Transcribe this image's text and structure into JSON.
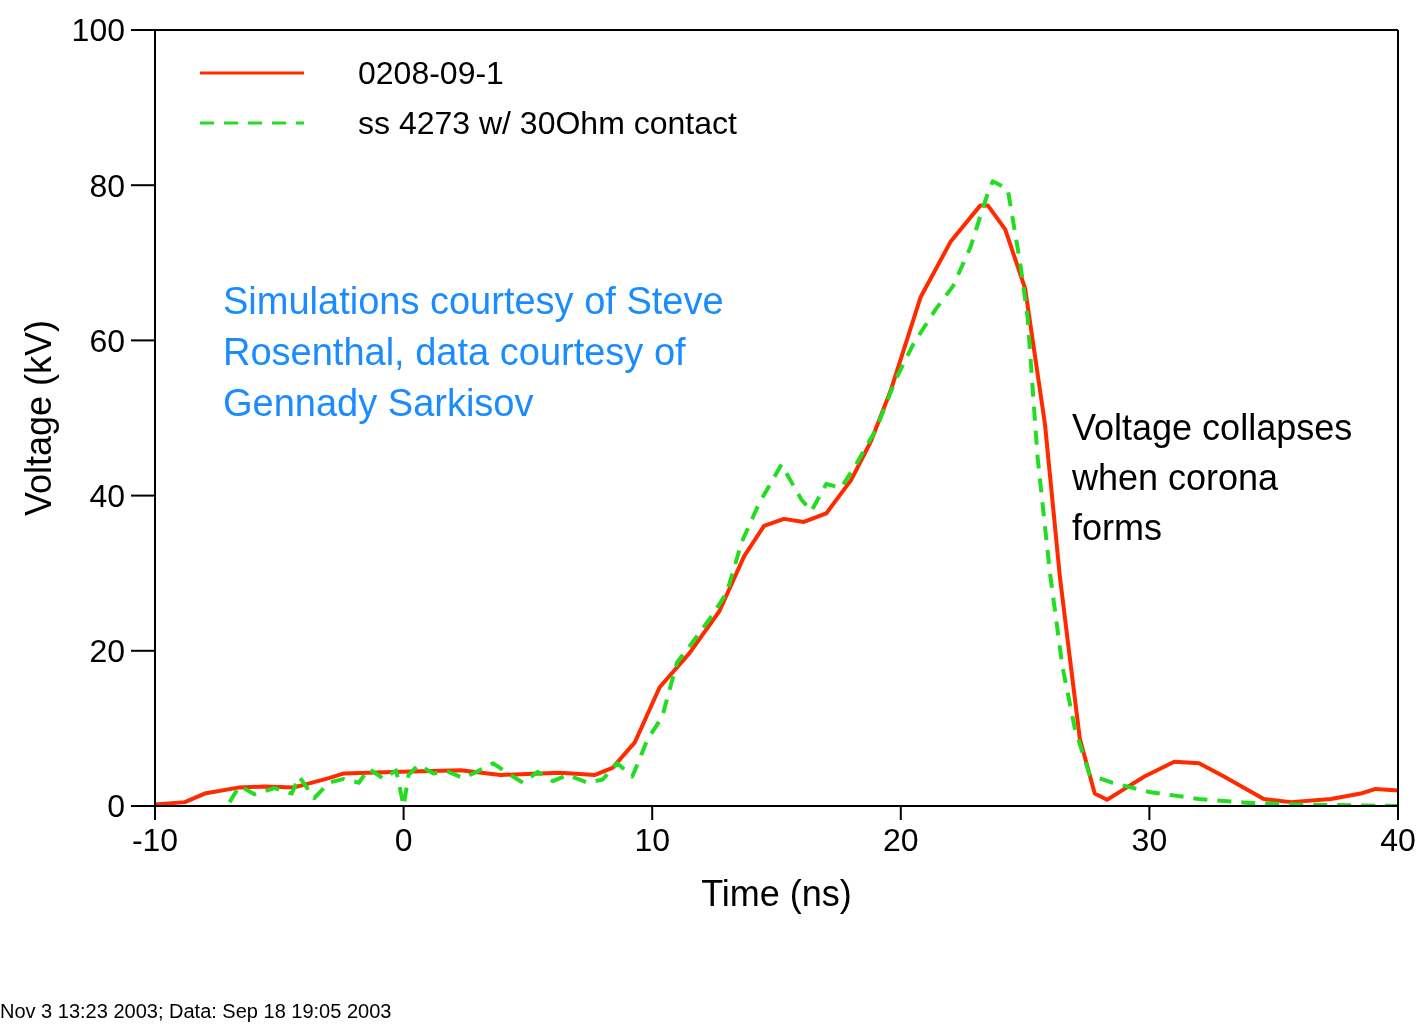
{
  "chart_data": {
    "type": "line",
    "xlabel": "Time (ns)",
    "ylabel": "Voltage (kV)",
    "xlim": [
      -10,
      40
    ],
    "xticks": [
      -10,
      0,
      10,
      20,
      30,
      40
    ],
    "ylim": [
      0,
      100
    ],
    "yticks": [
      0,
      20,
      40,
      60,
      80,
      100
    ],
    "legend": "top left",
    "marker": "none",
    "series": [
      {
        "name": "0208-09-1",
        "color": "#ff2a00",
        "line_style": "solid",
        "x": [
          -10,
          -8.8,
          -8,
          -6.6,
          -5.6,
          -4.4,
          -3,
          -2.4,
          -0.1,
          2.3,
          3.9,
          6.3,
          7.7,
          8.4,
          9.3,
          10.3,
          11.5,
          12.7,
          13.7,
          14.5,
          15.3,
          16.1,
          17,
          18,
          18.8,
          19.6,
          20.8,
          22,
          23.2,
          23.5,
          24.2,
          25,
          25.8,
          26.4,
          27.2,
          27.8,
          28.3,
          29,
          29.8,
          31,
          32,
          33,
          34.6,
          35.7,
          37.3,
          38.5,
          39.1,
          40
        ],
        "values": [
          0.2,
          0.5,
          1.6,
          2.4,
          2.5,
          2.4,
          3.6,
          4.2,
          4.4,
          4.6,
          4,
          4.3,
          4,
          4.9,
          8.2,
          15.3,
          19.7,
          25.1,
          32.2,
          36.1,
          37,
          36.6,
          37.7,
          42,
          47,
          53.6,
          65.6,
          72.7,
          77.4,
          77.4,
          74.3,
          66.7,
          49.2,
          29.5,
          8.7,
          1.6,
          0.8,
          2.2,
          3.8,
          5.7,
          5.5,
          3.8,
          0.9,
          0.5,
          0.9,
          1.6,
          2.2,
          2
        ]
      },
      {
        "name": "ss 4273 w/ 30Ohm contact",
        "color": "#22dd22",
        "line_style": "dashed",
        "x": [
          -7,
          -6.6,
          -6,
          -5.2,
          -4.5,
          -4.2,
          -3.6,
          -3,
          -2.4,
          -1.8,
          -1.4,
          -0.8,
          -0.3,
          0,
          0.2,
          0.6,
          1.2,
          1.8,
          2.4,
          3,
          3.6,
          4.2,
          4.8,
          5.4,
          6,
          6.6,
          7.4,
          8,
          8.6,
          9.2,
          9.8,
          10.4,
          11,
          11.6,
          12.4,
          13,
          13.6,
          14.3,
          15.2,
          16,
          16.4,
          17,
          17.6,
          18.2,
          19,
          19.8,
          20.5,
          21.4,
          22.1,
          22.8,
          23.5,
          23.7,
          24.3,
          24.8,
          25.1,
          25.5,
          26,
          26.5,
          27,
          27.6,
          28.5,
          30,
          32,
          34,
          36,
          38,
          40
        ],
        "values": [
          0.5,
          2.6,
          1.5,
          2.3,
          1.6,
          3.8,
          1,
          3,
          3.5,
          3,
          4.8,
          3.5,
          4.6,
          0,
          4,
          5.3,
          4.2,
          4.4,
          3.6,
          4.5,
          5.5,
          4.2,
          3,
          4.4,
          3.2,
          4,
          3,
          3.4,
          5.5,
          3.8,
          8.5,
          11.5,
          18.5,
          21,
          24.5,
          27.5,
          34,
          39,
          44,
          39.5,
          38,
          41.5,
          41,
          44,
          48.5,
          55,
          59.5,
          64,
          67,
          72,
          79,
          80.5,
          79.5,
          70,
          63,
          45,
          30,
          18,
          10,
          4,
          3,
          1.8,
          0.9,
          0.4,
          0.2,
          0.1,
          0
        ]
      }
    ],
    "annotations": [
      "Simulations courtesy of Steve Rosenthal, data courtesy of Gennady Sarkisov",
      "Voltage collapses when corona forms",
      "Nov 3 13:23 2003; Data: Sep 18 19:05 2003"
    ]
  }
}
